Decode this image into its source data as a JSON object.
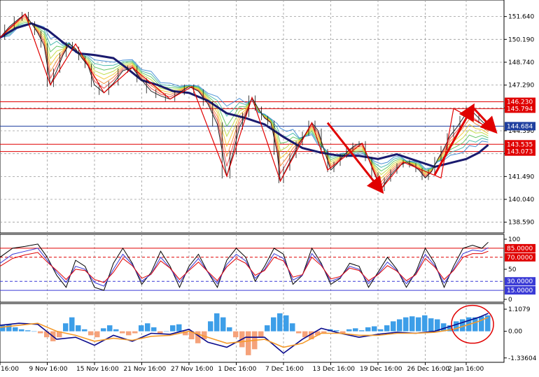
{
  "chart_data": [
    {
      "type": "line",
      "panel": "price",
      "ylim": [
        138.0,
        152.6
      ],
      "y_ticks": [
        151.64,
        150.19,
        148.74,
        147.29,
        145.84,
        144.39,
        142.94,
        141.49,
        140.04,
        138.59
      ],
      "y_tick_labels": [
        "151.640",
        "150.190",
        "148.740",
        "147.290",
        "145.840",
        "144.390",
        "142.940",
        "141.490",
        "140.040",
        "138.590"
      ],
      "horizontal_levels": [
        {
          "value": 146.23,
          "label": "146.230",
          "color": "#e00000"
        },
        {
          "value": 145.794,
          "label": "145.794",
          "color": "#e00000"
        },
        {
          "value": 144.684,
          "label": "144.684",
          "color": "#1f3f9f",
          "style": "current-price"
        },
        {
          "value": 143.535,
          "label": "143.535",
          "color": "#e00000"
        },
        {
          "value": 143.073,
          "label": "143.073",
          "color": "#e00000"
        }
      ],
      "zigzag": {
        "color": "#e00000",
        "x": [
          0,
          8,
          16,
          24,
          33,
          42,
          54,
          61,
          72,
          80,
          89,
          99,
          104,
          115,
          121,
          128,
          140,
          144,
          155
        ],
        "y": [
          150.3,
          151.8,
          147.3,
          149.9,
          146.8,
          148.4,
          146.4,
          147.2,
          141.5,
          146.5,
          141.2,
          144.9,
          141.9,
          143.6,
          140.7,
          142.4,
          141.4,
          145.8,
          144.6
        ]
      },
      "ma_slow": {
        "color": "#1a1a6e",
        "x": [
          0,
          5,
          10,
          15,
          20,
          25,
          30,
          36,
          40,
          45,
          50,
          55,
          60,
          66,
          72,
          78,
          84,
          90,
          96,
          102,
          108,
          114,
          120,
          126,
          132,
          138,
          144,
          148,
          152,
          155
        ],
        "y": [
          150.3,
          150.9,
          151.2,
          150.8,
          150.0,
          149.3,
          149.2,
          149.0,
          148.4,
          147.6,
          147.3,
          146.9,
          146.8,
          146.3,
          145.5,
          145.2,
          144.8,
          144.0,
          143.3,
          143.0,
          142.8,
          142.8,
          142.6,
          142.9,
          142.5,
          142.1,
          142.4,
          142.6,
          143.0,
          143.5
        ]
      },
      "price_close": {
        "x": [
          0,
          3,
          6,
          8,
          10,
          12,
          14,
          16,
          18,
          20,
          22,
          24,
          26,
          28,
          30,
          33,
          36,
          39,
          42,
          45,
          48,
          51,
          54,
          57,
          60,
          63,
          66,
          69,
          72,
          74,
          76,
          78,
          80,
          82,
          84,
          86,
          88,
          89,
          91,
          93,
          95,
          97,
          99,
          101,
          103,
          105,
          107,
          109,
          111,
          113,
          115,
          117,
          119,
          121,
          123,
          125,
          127,
          129,
          131,
          133,
          135,
          137,
          139,
          141,
          143,
          145,
          147,
          149,
          151,
          153,
          155
        ],
        "y": [
          150.3,
          151.0,
          151.5,
          151.8,
          151.2,
          150.6,
          149.8,
          147.3,
          148.2,
          149.2,
          149.9,
          149.6,
          149.0,
          148.5,
          147.3,
          146.8,
          147.4,
          148.2,
          148.4,
          147.6,
          146.9,
          146.6,
          146.4,
          146.8,
          147.2,
          146.9,
          146.1,
          144.8,
          141.5,
          143.0,
          144.6,
          145.4,
          146.5,
          145.8,
          145.2,
          144.9,
          143.0,
          141.2,
          142.0,
          142.8,
          143.6,
          144.2,
          144.9,
          144.4,
          143.1,
          141.9,
          142.3,
          142.8,
          143.2,
          143.5,
          143.6,
          142.6,
          141.6,
          140.7,
          141.3,
          141.8,
          142.2,
          142.4,
          142.2,
          141.9,
          141.4,
          141.8,
          142.6,
          143.3,
          144.1,
          144.6,
          145.2,
          145.8,
          145.4,
          145.0,
          144.6
        ]
      },
      "arrows": [
        {
          "from": [
            104,
            144.9
          ],
          "to": [
            121,
            140.6
          ],
          "color": "#e00000"
        },
        {
          "from": [
            138,
            141.6
          ],
          "to": [
            150,
            145.9
          ],
          "color": "#e00000"
        },
        {
          "from": [
            150,
            145.9
          ],
          "to": [
            157,
            144.4
          ],
          "color": "#e00000"
        }
      ]
    },
    {
      "type": "line",
      "panel": "oscillator",
      "ylim": [
        0,
        100
      ],
      "y_ticks": [
        100,
        50,
        0
      ],
      "y_tick_labels": [
        "100",
        "50",
        "0"
      ],
      "horizontal_levels": [
        {
          "value": 85.0,
          "label": "85.0000",
          "color": "#e00000"
        },
        {
          "value": 70.0,
          "label": "70.0000",
          "color": "#e00000"
        },
        {
          "value": 30.0,
          "label": "30.0000",
          "color": "#3a3ad6"
        },
        {
          "value": 15.0,
          "label": "15.0000",
          "color": "#3a3ad6"
        }
      ],
      "series": [
        {
          "color": "#000000",
          "x": [
            0,
            4,
            8,
            12,
            15,
            18,
            21,
            24,
            27,
            30,
            33,
            36,
            39,
            42,
            45,
            48,
            51,
            54,
            57,
            60,
            63,
            66,
            69,
            72,
            75,
            78,
            81,
            84,
            87,
            90,
            93,
            96,
            99,
            102,
            105,
            108,
            111,
            114,
            117,
            120,
            123,
            126,
            129,
            132,
            135,
            138,
            141,
            144,
            147,
            150,
            153,
            155
          ],
          "y": [
            70,
            85,
            88,
            92,
            70,
            40,
            20,
            65,
            55,
            20,
            15,
            60,
            85,
            60,
            25,
            45,
            80,
            55,
            20,
            55,
            75,
            45,
            20,
            65,
            85,
            70,
            30,
            55,
            85,
            75,
            25,
            40,
            85,
            60,
            25,
            35,
            60,
            55,
            20,
            45,
            70,
            50,
            20,
            45,
            85,
            60,
            20,
            55,
            85,
            90,
            85,
            95
          ]
        },
        {
          "color": "#3a3ad6",
          "x": [
            0,
            4,
            8,
            12,
            15,
            18,
            21,
            24,
            27,
            30,
            33,
            36,
            39,
            42,
            45,
            48,
            51,
            54,
            57,
            60,
            63,
            66,
            69,
            72,
            75,
            78,
            81,
            84,
            87,
            90,
            93,
            96,
            99,
            102,
            105,
            108,
            111,
            114,
            117,
            120,
            123,
            126,
            129,
            132,
            135,
            138,
            141,
            144,
            147,
            150,
            153,
            155
          ],
          "y": [
            60,
            75,
            80,
            85,
            65,
            45,
            28,
            55,
            50,
            28,
            22,
            50,
            75,
            58,
            30,
            42,
            70,
            52,
            28,
            50,
            68,
            45,
            26,
            58,
            75,
            64,
            35,
            50,
            76,
            68,
            32,
            40,
            76,
            58,
            30,
            36,
            55,
            50,
            26,
            42,
            62,
            48,
            26,
            42,
            75,
            56,
            27,
            50,
            76,
            82,
            80,
            86
          ]
        },
        {
          "color": "#e00000",
          "x": [
            0,
            4,
            8,
            12,
            15,
            18,
            21,
            24,
            27,
            30,
            33,
            36,
            39,
            42,
            45,
            48,
            51,
            54,
            57,
            60,
            63,
            66,
            69,
            72,
            75,
            78,
            81,
            84,
            87,
            90,
            93,
            96,
            99,
            102,
            105,
            108,
            111,
            114,
            117,
            120,
            123,
            126,
            129,
            132,
            135,
            138,
            141,
            144,
            147,
            150,
            153,
            155
          ],
          "y": [
            55,
            68,
            74,
            78,
            62,
            48,
            33,
            50,
            48,
            33,
            28,
            45,
            68,
            56,
            35,
            42,
            64,
            52,
            33,
            48,
            62,
            46,
            31,
            54,
            68,
            60,
            40,
            48,
            70,
            64,
            37,
            41,
            70,
            56,
            34,
            38,
            52,
            48,
            31,
            41,
            56,
            47,
            31,
            41,
            68,
            54,
            33,
            48,
            70,
            76,
            76,
            80
          ]
        }
      ]
    },
    {
      "type": "bar",
      "panel": "macd",
      "ylim": [
        -1.45,
        1.25
      ],
      "y_ticks": [
        1.1079,
        0.0,
        -1.33604
      ],
      "y_tick_labels": [
        "1.1079",
        "0.00",
        "-1.33604"
      ],
      "histogram": {
        "positive_color": "#3d9ee8",
        "negative_color": "#f5a27a",
        "x": [
          0,
          2,
          4,
          6,
          8,
          10,
          12,
          14,
          16,
          18,
          20,
          22,
          24,
          26,
          28,
          30,
          32,
          34,
          36,
          38,
          40,
          42,
          44,
          46,
          48,
          50,
          52,
          54,
          56,
          58,
          60,
          62,
          64,
          66,
          68,
          70,
          72,
          74,
          76,
          78,
          80,
          82,
          84,
          86,
          88,
          90,
          92,
          94,
          96,
          98,
          100,
          102,
          104,
          106,
          108,
          110,
          112,
          114,
          116,
          118,
          120,
          122,
          124,
          126,
          128,
          130,
          132,
          134,
          136,
          138,
          140,
          142,
          144,
          146,
          148,
          150,
          152,
          154
        ],
        "values": [
          0.3,
          0.35,
          0.2,
          0.1,
          0.05,
          0.0,
          -0.1,
          -0.3,
          -0.5,
          -0.3,
          0.4,
          0.7,
          0.3,
          0.1,
          -0.2,
          -0.3,
          0.15,
          0.3,
          0.1,
          -0.1,
          -0.2,
          -0.1,
          0.3,
          0.4,
          0.2,
          -0.1,
          0.0,
          0.3,
          0.35,
          -0.2,
          -0.4,
          -0.6,
          -0.4,
          0.5,
          0.9,
          0.7,
          0.2,
          -0.3,
          -0.8,
          -1.2,
          -0.9,
          -0.3,
          0.3,
          0.7,
          0.9,
          0.8,
          0.4,
          -0.1,
          -0.3,
          -0.4,
          -0.2,
          -0.1,
          0.1,
          0.05,
          -0.1,
          0.1,
          0.15,
          0.05,
          0.2,
          0.25,
          0.1,
          0.3,
          0.5,
          0.6,
          0.7,
          0.75,
          0.7,
          0.8,
          0.65,
          0.6,
          0.4,
          0.3,
          0.5,
          0.6,
          0.7,
          0.7,
          0.75,
          0.8
        ]
      },
      "series": [
        {
          "color": "#0a0a8c",
          "x": [
            0,
            6,
            12,
            18,
            24,
            30,
            36,
            42,
            48,
            54,
            60,
            66,
            72,
            78,
            84,
            90,
            96,
            102,
            108,
            114,
            120,
            126,
            132,
            138,
            144,
            148,
            152,
            155
          ],
          "y": [
            0.3,
            0.4,
            0.35,
            -0.4,
            -0.3,
            -0.7,
            -0.2,
            -0.5,
            -0.1,
            -0.15,
            0.1,
            -0.55,
            -0.8,
            -0.3,
            -0.3,
            -1.1,
            -0.4,
            0.15,
            -0.1,
            -0.3,
            -0.15,
            -0.05,
            -0.1,
            0.0,
            0.3,
            0.5,
            0.7,
            0.9
          ]
        },
        {
          "color": "#f59a2a",
          "x": [
            0,
            6,
            12,
            18,
            24,
            30,
            36,
            42,
            48,
            54,
            60,
            66,
            72,
            78,
            84,
            90,
            96,
            102,
            108,
            114,
            120,
            126,
            132,
            138,
            144,
            148,
            152,
            155
          ],
          "y": [
            0.2,
            0.3,
            0.4,
            0.0,
            -0.2,
            -0.5,
            -0.35,
            -0.45,
            -0.25,
            -0.2,
            0.0,
            -0.3,
            -0.6,
            -0.5,
            -0.4,
            -0.8,
            -0.6,
            -0.1,
            -0.1,
            -0.2,
            -0.2,
            -0.1,
            -0.1,
            -0.05,
            0.1,
            0.3,
            0.5,
            0.7
          ]
        }
      ],
      "annotation": {
        "shape": "ellipse",
        "color": "#e00000",
        "center": [
          150,
          0.35
        ]
      }
    }
  ],
  "x_axis": {
    "tick_x": [
      0,
      15,
      30,
      45,
      60,
      75,
      90,
      105,
      120,
      135,
      148
    ],
    "tick_labels": [
      "16:00",
      "9 Nov 16:00",
      "15 Nov 16:00",
      "21 Nov 16:00",
      "27 Nov 16:00",
      "1 Dec 16:00",
      "7 Dec 16:00",
      "13 Dec 16:00",
      "19 Dec 16:00",
      "26 Dec 16:00",
      "2 Jan 16:00"
    ]
  }
}
